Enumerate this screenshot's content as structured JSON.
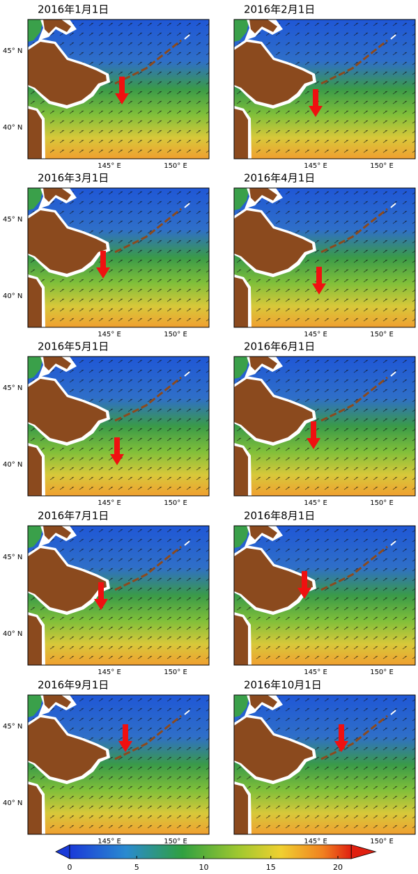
{
  "panels": [
    {
      "title": "2016年1月1日"
    },
    {
      "title": "2016年2月1日"
    },
    {
      "title": "2016年3月1日"
    },
    {
      "title": "2016年4月1日"
    },
    {
      "title": "2016年5月1日"
    },
    {
      "title": "2016年6月1日"
    },
    {
      "title": "2016年7月1日"
    },
    {
      "title": "2016年8月1日"
    },
    {
      "title": "2016年9月1日"
    },
    {
      "title": "2016年10月1日"
    }
  ],
  "axes": {
    "y_labels": [
      "45° N",
      "40° N"
    ],
    "x_labels": [
      "145° E",
      "150° E"
    ]
  },
  "colorbar": {
    "clim": [
      0,
      21
    ],
    "ticks": [
      0,
      5,
      10,
      15,
      20
    ]
  }
}
